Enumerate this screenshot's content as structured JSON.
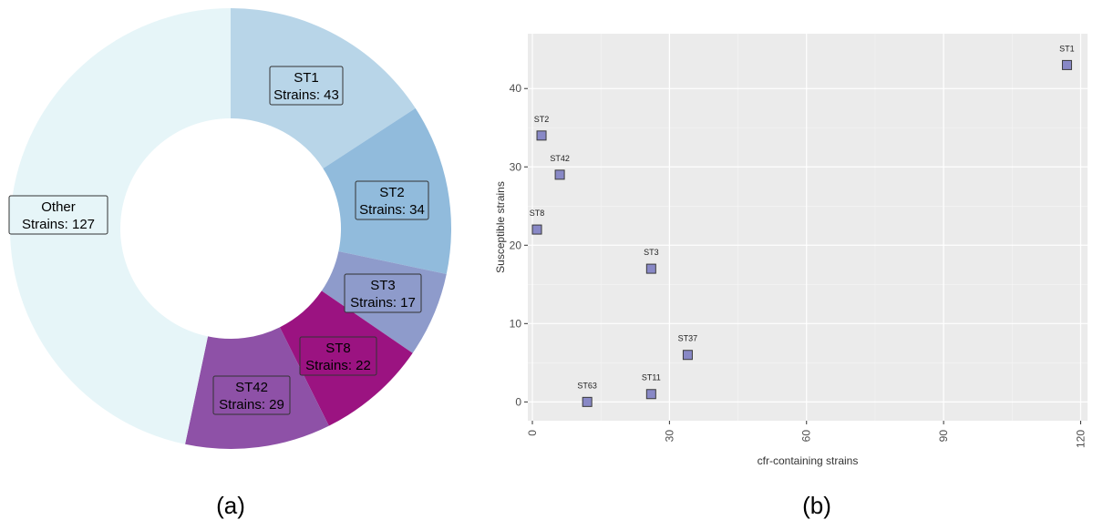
{
  "panels": {
    "a": {
      "caption": "(a)"
    },
    "b": {
      "caption": "(b)"
    }
  },
  "chart_data": [
    {
      "type": "pie",
      "donut": true,
      "slices": [
        {
          "label": "ST1",
          "value": 43,
          "text": "Strains: 43",
          "color": "#b8d5e8"
        },
        {
          "label": "ST2",
          "value": 34,
          "text": "Strains: 34",
          "color": "#91bbdc"
        },
        {
          "label": "ST3",
          "value": 17,
          "text": "Strains: 17",
          "color": "#8e9bcb"
        },
        {
          "label": "ST8",
          "value": 22,
          "text": "Strains: 22",
          "color": "#9b1381"
        },
        {
          "label": "ST42",
          "value": 29,
          "text": "Strains: 29",
          "color": "#8e51a7"
        },
        {
          "label": "Other",
          "value": 127,
          "text": "Strains: 127",
          "color": "#e6f5f8"
        }
      ]
    },
    {
      "type": "scatter",
      "xlabel": "cfr-containing strains",
      "ylabel": "Susceptible strains",
      "xlim": [
        -1,
        121.5
      ],
      "ylim": [
        -2.4,
        47
      ],
      "xticks": [
        0,
        30,
        60,
        90,
        120
      ],
      "yticks": [
        0,
        10,
        20,
        30,
        40
      ],
      "grid": true,
      "panel_bg": "#ebebeb",
      "marker_color": "#8888c6",
      "points": [
        {
          "label": "ST1",
          "x": 117,
          "y": 43
        },
        {
          "label": "ST2",
          "x": 2,
          "y": 34
        },
        {
          "label": "ST42",
          "x": 6,
          "y": 29
        },
        {
          "label": "ST8",
          "x": 1,
          "y": 22
        },
        {
          "label": "ST3",
          "x": 26,
          "y": 17
        },
        {
          "label": "ST37",
          "x": 34,
          "y": 6
        },
        {
          "label": "ST11",
          "x": 26,
          "y": 1
        },
        {
          "label": "ST63",
          "x": 12,
          "y": 0
        }
      ]
    }
  ]
}
